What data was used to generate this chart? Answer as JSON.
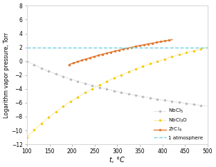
{
  "xlabel": "t, °C",
  "ylabel": "Logarithm vapor pressure, Torr",
  "xlim": [
    100,
    500
  ],
  "ylim": [
    -12,
    8
  ],
  "yticks": [
    -12,
    -10,
    -8,
    -6,
    -4,
    -2,
    0,
    2,
    4,
    6,
    8
  ],
  "xticks": [
    100,
    150,
    200,
    250,
    300,
    350,
    400,
    450,
    500
  ],
  "atm_line_y": 2.0,
  "atm_color": "#6ecfde",
  "nbcl5_color": "#b8b8b8",
  "nbcl3o_color": "#f5c800",
  "zrcl4_color": "#e07830",
  "legend_labels": [
    "NbCl$_5$",
    "NbCl$_3$O",
    "ZrCl$_4$",
    "1 atmosphere"
  ],
  "background_color": "#ffffff",
  "nbcl5_A": 14.2,
  "nbcl5_B": -5300,
  "nbcl5_t_start": 100,
  "nbcl5_t_end": 500,
  "nbcl3o_A": 14.58,
  "nbcl3o_B": -9726,
  "nbcl3o_t_start": 100,
  "nbcl3o_t_end": 500,
  "zrcl4_A": 11.2,
  "zrcl4_B": -5600,
  "zrcl4_t_start": 193,
  "zrcl4_t_end": 422
}
